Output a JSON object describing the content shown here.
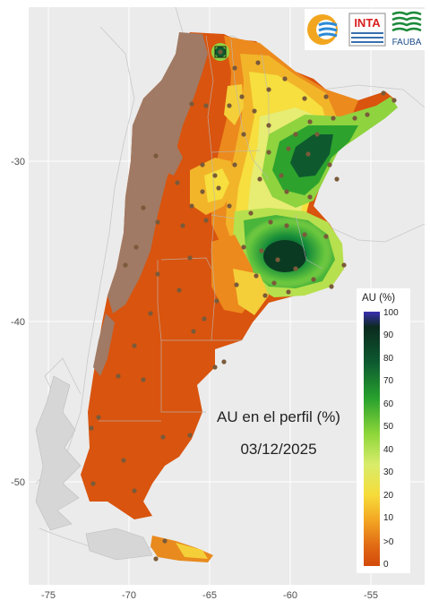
{
  "map": {
    "title": "AU en el perfil (%)",
    "date": "03/12/2025",
    "x_ticks": [
      "-75",
      "-70",
      "-65",
      "-60",
      "-55"
    ],
    "y_ticks": [
      "-30",
      "-40",
      "-50"
    ]
  },
  "legend": {
    "title": "AU (%)",
    "labels": [
      "100",
      "90",
      "80",
      "70",
      "60",
      "50",
      "40",
      "30",
      "20",
      "10",
      ">0",
      "0"
    ]
  },
  "logos": {
    "inta_text": "INTA",
    "fauba_text": "FAUBA"
  },
  "colors": {
    "background": "#ebebeb",
    "dry": "#d9540e",
    "orange": "#ec8a1d",
    "yellow": "#f6d22c",
    "light_green": "#a8e04a",
    "green": "#2da32e",
    "dark_green": "#0a4a2a",
    "mountains": "#a07a64",
    "station": "#7a5a3a"
  }
}
